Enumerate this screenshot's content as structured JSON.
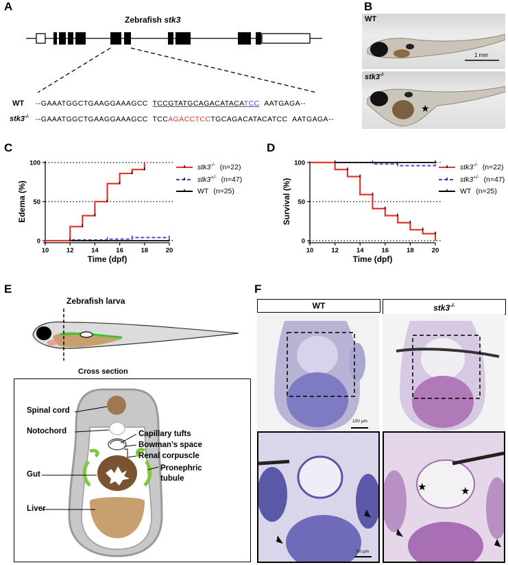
{
  "panels": {
    "A": "A",
    "B": "B",
    "C": "C",
    "D": "D",
    "E": "E",
    "F": "F"
  },
  "panelA": {
    "gene_title_prefix": "Zebrafish ",
    "gene_title_gene": "stk3",
    "wt_label": "WT",
    "mut_label_gene": "stk3",
    "mut_label_sup": "-/-",
    "wt_seq_a": "--GAAATGGCTGAAGGAAAGCC",
    "wt_seq_b": "TCCGTATGCAGACATACA",
    "wt_seq_c": "TCC",
    "wt_seq_d": "AATGAGA--",
    "mut_seq_a": "--GAAATGGCTGAAGGAAAGCC",
    "mut_seq_b": "TCC",
    "mut_seq_c": "AGACCTCC",
    "mut_seq_d": "TGCAGACATACATCC",
    "mut_seq_e": "AATGAGA--",
    "colors": {
      "insert": "#e8342e",
      "pam": "#4a4ad0",
      "underline": "#555555"
    }
  },
  "panelB": {
    "wt_label": "WT",
    "mut_gene": "stk3",
    "mut_sup": "-/-",
    "scale_label": "1 mm",
    "star": "★"
  },
  "legend": [
    {
      "gene": "stk3",
      "sup": "-/-",
      "n": "(n=22)",
      "color": "#e8342e",
      "style": "solid"
    },
    {
      "gene": "stk3",
      "sup": "+/-",
      "n": "(n=47)",
      "color": "#3f3fcf",
      "style": "dashed"
    },
    {
      "gene": "WT",
      "sup": "",
      "n": "(n=25)",
      "color": "#000000",
      "style": "solid"
    }
  ],
  "chart_data": [
    {
      "type": "line",
      "panel": "C",
      "ylabel": "Edema (%)",
      "xlabel": "Time (dpf)",
      "xlim": [
        10,
        20
      ],
      "ylim": [
        0,
        100
      ],
      "xticks": [
        10,
        12,
        14,
        16,
        18,
        20
      ],
      "yticks": [
        0,
        50,
        100
      ],
      "dotted_gridlines_y": [
        0,
        50,
        100
      ],
      "series": [
        {
          "name": "stk3-/-",
          "step": true,
          "x": [
            10,
            12,
            12,
            13,
            13,
            14,
            14,
            15,
            15,
            16,
            16,
            17,
            17,
            18,
            18
          ],
          "y": [
            0,
            0,
            18,
            18,
            32,
            32,
            50,
            50,
            73,
            73,
            86,
            86,
            91,
            91,
            100
          ]
        },
        {
          "name": "stk3+/-",
          "step": true,
          "x": [
            10,
            12,
            15,
            17,
            20
          ],
          "y": [
            0,
            1,
            2,
            4,
            4
          ]
        },
        {
          "name": "WT",
          "step": true,
          "x": [
            10,
            20
          ],
          "y": [
            0,
            0
          ]
        }
      ]
    },
    {
      "type": "line",
      "panel": "D",
      "ylabel": "Survival (%)",
      "xlabel": "Time (dpf)",
      "xlim": [
        10,
        20
      ],
      "ylim": [
        0,
        100
      ],
      "xticks": [
        10,
        12,
        14,
        16,
        18,
        20
      ],
      "yticks": [
        0,
        50,
        100
      ],
      "dotted_gridlines_y": [
        0,
        50,
        100
      ],
      "series": [
        {
          "name": "stk3-/-",
          "step": true,
          "x": [
            10,
            12,
            12,
            13,
            13,
            14,
            14,
            15,
            15,
            16,
            16,
            17,
            17,
            18,
            18,
            19,
            19,
            20,
            20
          ],
          "y": [
            100,
            100,
            91,
            91,
            82,
            82,
            59,
            59,
            41,
            41,
            32,
            32,
            23,
            23,
            14,
            14,
            9,
            9,
            0
          ]
        },
        {
          "name": "stk3+/-",
          "step": true,
          "x": [
            10,
            15,
            15,
            17,
            17,
            20
          ],
          "y": [
            100,
            100,
            98,
            98,
            96,
            96
          ]
        },
        {
          "name": "WT",
          "step": true,
          "x": [
            10,
            20
          ],
          "y": [
            100,
            100
          ]
        }
      ]
    }
  ],
  "panelE": {
    "larva_title": "Zebrafish larva",
    "cs_title": "Cross section",
    "labels": {
      "spinal_cord": "Spinal cord",
      "notochord": "Notochord",
      "capillary": "Capillary tufts",
      "bowman": "Bowman’s space",
      "renal": "Renal corpuscle",
      "pronephric1": "Pronephric",
      "pronephric2": "tubule",
      "gut": "Gut",
      "liver": "Liver"
    }
  },
  "panelF": {
    "wt_title": "WT",
    "mut_gene": "stk3",
    "mut_sup": "-/-",
    "scale_top": "100 µm",
    "scale_bottom": "50 µm"
  }
}
